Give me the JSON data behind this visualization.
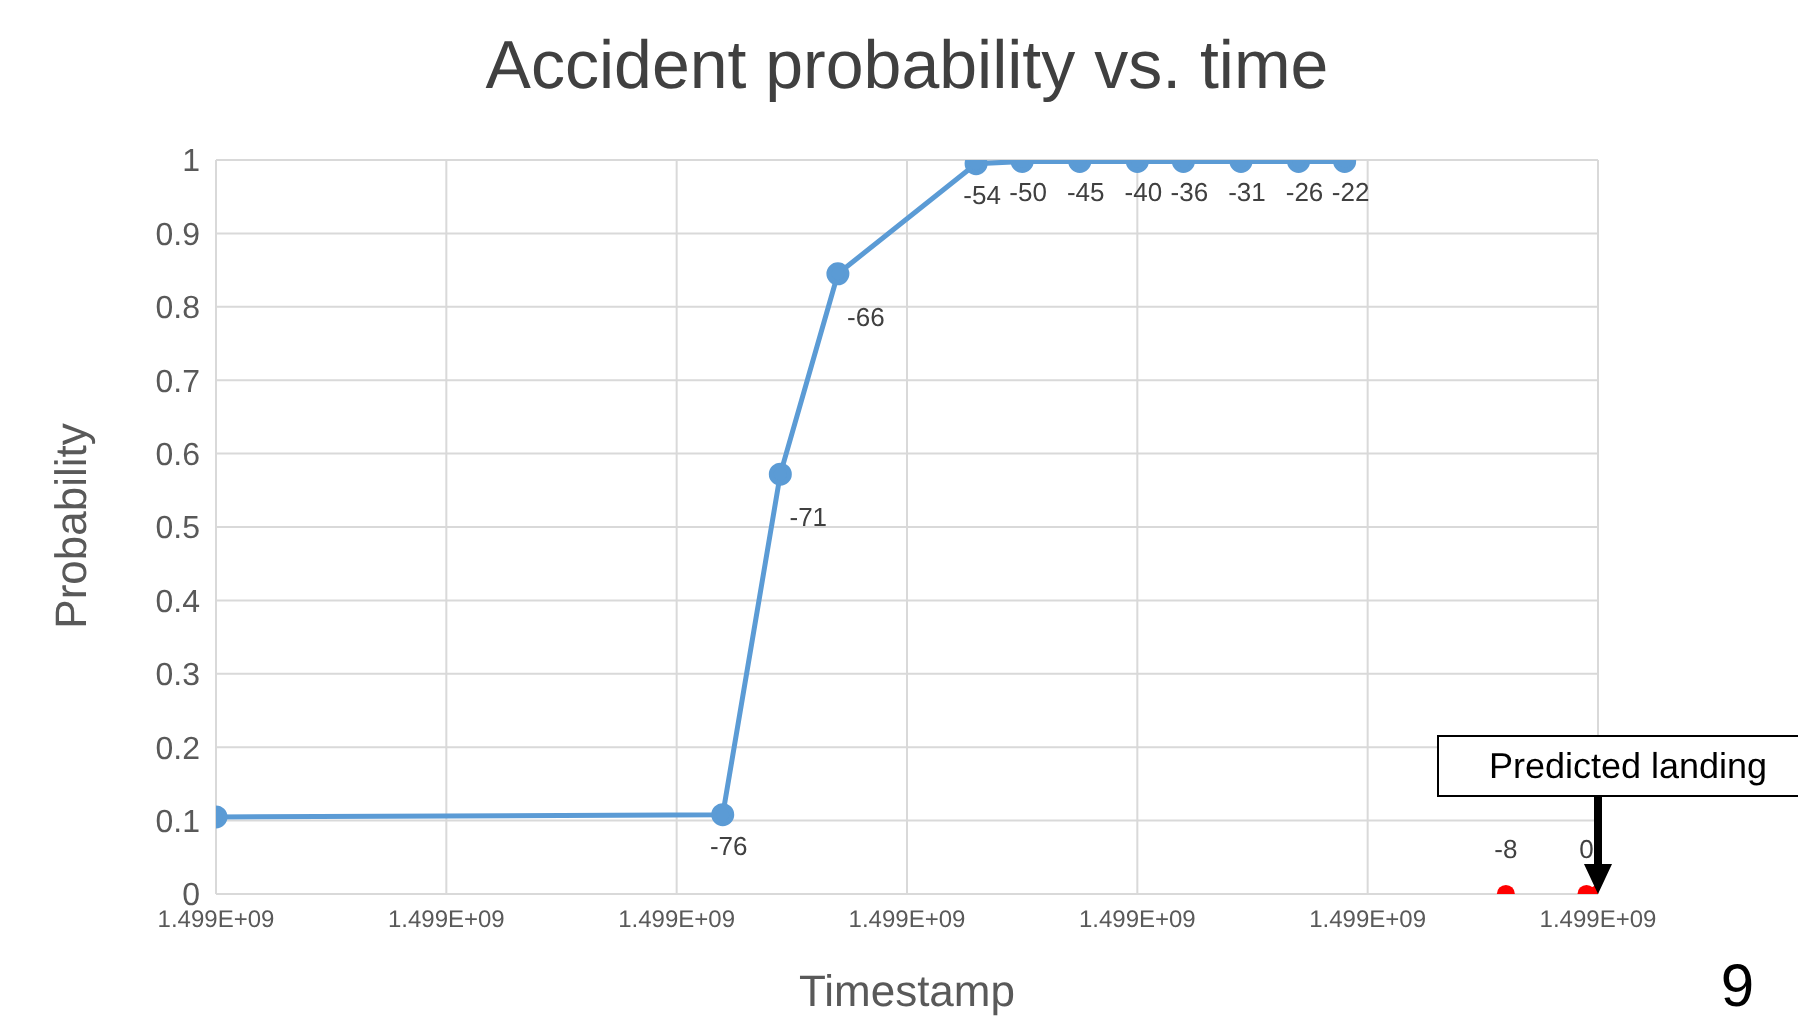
{
  "chart_data": {
    "type": "line",
    "title": "Accident probability vs. time",
    "xlabel": "Timestamp",
    "ylabel": "Probability",
    "series": [
      {
        "color": "#5b9bd5",
        "x": [
          1498999880,
          1498999924,
          1498999929,
          1498999934,
          1498999946,
          1498999950,
          1498999955,
          1498999960,
          1498999964,
          1498999969,
          1498999974,
          1498999978
        ],
        "values": [
          0.105,
          0.108,
          0.572,
          0.845,
          0.995,
          0.998,
          0.998,
          0.998,
          0.998,
          0.998,
          0.998,
          0.998
        ]
      },
      {
        "type": "scatter",
        "color": "#ff0000",
        "x": [
          1498999992,
          1498999999,
          1499000000
        ],
        "values": [
          0,
          0,
          0
        ]
      }
    ],
    "xlim": [
      1498999880,
      1499000000
    ],
    "xticks": [
      {
        "value": 1498999880,
        "label": "1.499E+09"
      },
      {
        "value": 1498999900,
        "label": "1.499E+09"
      },
      {
        "value": 1498999920,
        "label": "1.499E+09"
      },
      {
        "value": 1498999940,
        "label": "1.499E+09"
      },
      {
        "value": 1498999960,
        "label": "1.499E+09"
      },
      {
        "value": 1498999980,
        "label": "1.499E+09"
      },
      {
        "value": 1499000000,
        "label": "1.499E+09"
      }
    ],
    "ylim": [
      0,
      1
    ],
    "yticks": [
      0,
      0.1,
      0.2,
      0.3,
      0.4,
      0.5,
      0.6,
      0.7,
      0.8,
      0.9,
      1
    ],
    "grid": true,
    "marker": "circle",
    "line_style": "solid",
    "annotations": [
      {
        "text": "-76",
        "x": 1498999924,
        "y": 0.108
      },
      {
        "text": "-71",
        "x": 1498999929,
        "y": 0.572
      },
      {
        "text": "-66",
        "x": 1498999934,
        "y": 0.845
      },
      {
        "text": "-54",
        "x": 1498999946,
        "y": 0.995
      },
      {
        "text": "-50",
        "x": 1498999950,
        "y": 0.998
      },
      {
        "text": "-45",
        "x": 1498999955,
        "y": 0.998
      },
      {
        "text": "-40",
        "x": 1498999960,
        "y": 0.998
      },
      {
        "text": "-36",
        "x": 1498999964,
        "y": 0.998
      },
      {
        "text": "-31",
        "x": 1498999969,
        "y": 0.998
      },
      {
        "text": "-26",
        "x": 1498999974,
        "y": 0.998
      },
      {
        "text": "-22",
        "x": 1498999978,
        "y": 0.998
      },
      {
        "text": "-8",
        "x": 1498999992,
        "y": 0
      },
      {
        "text": "0",
        "x": 1498999999,
        "y": 0
      },
      {
        "text": "Predicted landing",
        "x": 1499000000,
        "y": 0
      },
      "9"
    ]
  }
}
